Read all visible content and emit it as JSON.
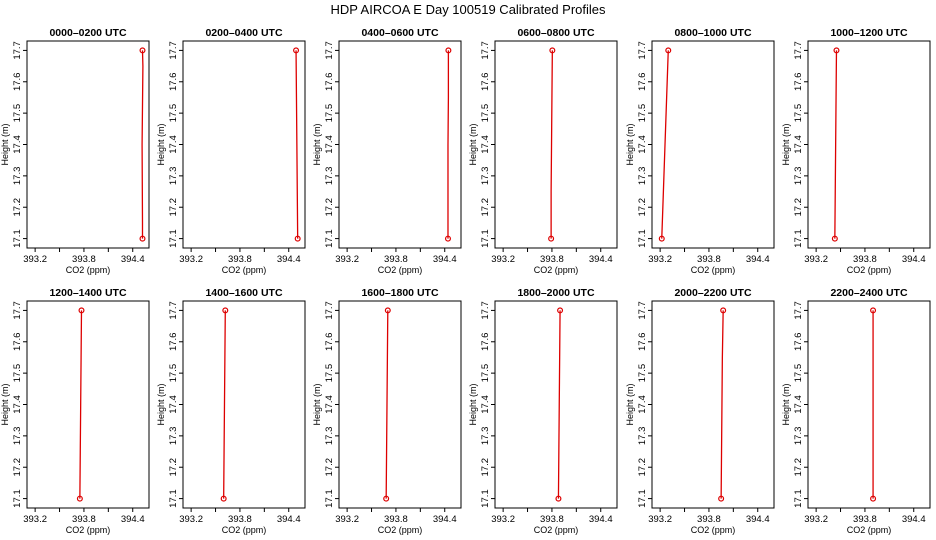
{
  "figure": {
    "title": "HDP AIRCOA E  Day 100519  Calibrated Profiles"
  },
  "chart_data": [
    {
      "type": "line",
      "title": "0000–0200 UTC",
      "xlabel": "CO2 (ppm)",
      "ylabel": "Height (m)",
      "x_ticks": [
        "393.2",
        "393.8",
        "394.4"
      ],
      "y_ticks": [
        "17.1",
        "17.2",
        "17.3",
        "17.4",
        "17.5",
        "17.6",
        "17.7"
      ],
      "xlim": [
        393.1,
        394.6
      ],
      "ylim": [
        17.07,
        17.73
      ],
      "x": [
        394.52,
        394.52,
        394.515,
        394.525,
        394.52
      ],
      "y": [
        17.1,
        17.15,
        17.4,
        17.65,
        17.7
      ]
    },
    {
      "type": "line",
      "title": "0200–0400 UTC",
      "xlabel": "CO2 (ppm)",
      "ylabel": "Height (m)",
      "x_ticks": [
        "393.2",
        "393.8",
        "394.4"
      ],
      "y_ticks": [
        "17.1",
        "17.2",
        "17.3",
        "17.4",
        "17.5",
        "17.6",
        "17.7"
      ],
      "xlim": [
        393.1,
        394.6
      ],
      "ylim": [
        17.07,
        17.73
      ],
      "x": [
        394.51,
        394.505,
        394.5,
        394.495,
        394.49
      ],
      "y": [
        17.1,
        17.25,
        17.4,
        17.55,
        17.7
      ]
    },
    {
      "type": "line",
      "title": "0400–0600 UTC",
      "xlabel": "CO2 (ppm)",
      "ylabel": "Height (m)",
      "x_ticks": [
        "393.2",
        "393.8",
        "394.4"
      ],
      "y_ticks": [
        "17.1",
        "17.2",
        "17.3",
        "17.4",
        "17.5",
        "17.6",
        "17.7"
      ],
      "xlim": [
        393.1,
        394.6
      ],
      "ylim": [
        17.07,
        17.73
      ],
      "x": [
        394.44,
        394.44,
        394.44,
        394.445,
        394.445
      ],
      "y": [
        17.1,
        17.25,
        17.4,
        17.55,
        17.7
      ]
    },
    {
      "type": "line",
      "title": "0600–0800 UTC",
      "xlabel": "CO2 (ppm)",
      "ylabel": "Height (m)",
      "x_ticks": [
        "393.2",
        "393.8",
        "394.4"
      ],
      "y_ticks": [
        "17.1",
        "17.2",
        "17.3",
        "17.4",
        "17.5",
        "17.6",
        "17.7"
      ],
      "xlim": [
        393.1,
        394.6
      ],
      "ylim": [
        17.07,
        17.73
      ],
      "x": [
        393.79,
        393.79,
        393.795,
        393.8,
        393.805
      ],
      "y": [
        17.1,
        17.25,
        17.4,
        17.55,
        17.7
      ]
    },
    {
      "type": "line",
      "title": "0800–1000 UTC",
      "xlabel": "CO2 (ppm)",
      "ylabel": "Height (m)",
      "x_ticks": [
        "393.2",
        "393.8",
        "394.4"
      ],
      "y_ticks": [
        "17.1",
        "17.2",
        "17.3",
        "17.4",
        "17.5",
        "17.6",
        "17.7"
      ],
      "xlim": [
        393.1,
        394.6
      ],
      "ylim": [
        17.07,
        17.73
      ],
      "x": [
        393.22,
        393.24,
        393.26,
        393.28,
        393.3
      ],
      "y": [
        17.1,
        17.25,
        17.4,
        17.55,
        17.7
      ]
    },
    {
      "type": "line",
      "title": "1000–1200 UTC",
      "xlabel": "CO2 (ppm)",
      "ylabel": "Height (m)",
      "x_ticks": [
        "393.2",
        "393.8",
        "394.4"
      ],
      "y_ticks": [
        "17.1",
        "17.2",
        "17.3",
        "17.4",
        "17.5",
        "17.6",
        "17.7"
      ],
      "xlim": [
        393.1,
        394.6
      ],
      "ylim": [
        17.07,
        17.73
      ],
      "x": [
        393.43,
        393.435,
        393.44,
        393.445,
        393.45
      ],
      "y": [
        17.1,
        17.25,
        17.4,
        17.55,
        17.7
      ]
    },
    {
      "type": "line",
      "title": "1200–1400 UTC",
      "xlabel": "CO2 (ppm)",
      "ylabel": "Height (m)",
      "x_ticks": [
        "393.2",
        "393.8",
        "394.4"
      ],
      "y_ticks": [
        "17.1",
        "17.2",
        "17.3",
        "17.4",
        "17.5",
        "17.6",
        "17.7"
      ],
      "xlim": [
        393.1,
        394.6
      ],
      "ylim": [
        17.07,
        17.73
      ],
      "x": [
        393.75,
        393.755,
        393.76,
        393.765,
        393.77
      ],
      "y": [
        17.1,
        17.25,
        17.4,
        17.55,
        17.7
      ]
    },
    {
      "type": "line",
      "title": "1400–1600 UTC",
      "xlabel": "CO2 (ppm)",
      "ylabel": "Height (m)",
      "x_ticks": [
        "393.2",
        "393.8",
        "394.4"
      ],
      "y_ticks": [
        "17.1",
        "17.2",
        "17.3",
        "17.4",
        "17.5",
        "17.6",
        "17.7"
      ],
      "xlim": [
        393.1,
        394.6
      ],
      "ylim": [
        17.07,
        17.73
      ],
      "x": [
        393.6,
        393.605,
        393.61,
        393.615,
        393.62
      ],
      "y": [
        17.1,
        17.25,
        17.4,
        17.55,
        17.7
      ]
    },
    {
      "type": "line",
      "title": "1600–1800 UTC",
      "xlabel": "CO2 (ppm)",
      "ylabel": "Height (m)",
      "x_ticks": [
        "393.2",
        "393.8",
        "394.4"
      ],
      "y_ticks": [
        "17.1",
        "17.2",
        "17.3",
        "17.4",
        "17.5",
        "17.6",
        "17.7"
      ],
      "xlim": [
        393.1,
        394.6
      ],
      "ylim": [
        17.07,
        17.73
      ],
      "x": [
        393.68,
        393.685,
        393.69,
        393.695,
        393.7
      ],
      "y": [
        17.1,
        17.25,
        17.4,
        17.55,
        17.7
      ]
    },
    {
      "type": "line",
      "title": "1800–2000 UTC",
      "xlabel": "CO2 (ppm)",
      "ylabel": "Height (m)",
      "x_ticks": [
        "393.2",
        "393.8",
        "394.4"
      ],
      "y_ticks": [
        "17.1",
        "17.2",
        "17.3",
        "17.4",
        "17.5",
        "17.6",
        "17.7"
      ],
      "xlim": [
        393.1,
        394.6
      ],
      "ylim": [
        17.07,
        17.73
      ],
      "x": [
        393.88,
        393.885,
        393.89,
        393.895,
        393.9
      ],
      "y": [
        17.1,
        17.25,
        17.4,
        17.55,
        17.7
      ]
    },
    {
      "type": "line",
      "title": "2000–2200 UTC",
      "xlabel": "CO2 (ppm)",
      "ylabel": "Height (m)",
      "x_ticks": [
        "393.2",
        "393.8",
        "394.4"
      ],
      "y_ticks": [
        "17.1",
        "17.2",
        "17.3",
        "17.4",
        "17.5",
        "17.6",
        "17.7"
      ],
      "xlim": [
        393.1,
        394.6
      ],
      "ylim": [
        17.07,
        17.73
      ],
      "x": [
        393.95,
        393.955,
        393.96,
        393.965,
        393.975
      ],
      "y": [
        17.1,
        17.25,
        17.4,
        17.55,
        17.7
      ]
    },
    {
      "type": "line",
      "title": "2200–2400 UTC",
      "xlabel": "CO2 (ppm)",
      "ylabel": "Height (m)",
      "x_ticks": [
        "393.2",
        "393.8",
        "394.4"
      ],
      "y_ticks": [
        "17.1",
        "17.2",
        "17.3",
        "17.4",
        "17.5",
        "17.6",
        "17.7"
      ],
      "xlim": [
        393.1,
        394.6
      ],
      "ylim": [
        17.07,
        17.73
      ],
      "x": [
        393.9,
        393.9,
        393.9,
        393.9,
        393.9
      ],
      "y": [
        17.1,
        17.25,
        17.4,
        17.55,
        17.7
      ]
    }
  ]
}
